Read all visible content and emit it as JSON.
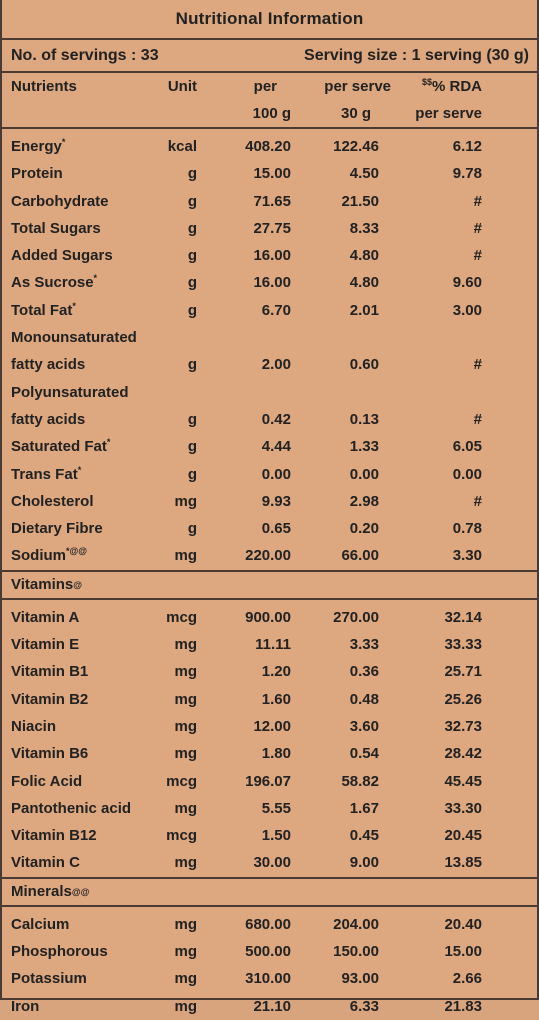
{
  "title": "Nutritional Information",
  "servings": {
    "count_label": "No. of servings : 33",
    "size_label": "Serving size : 1 serving (30 g)"
  },
  "columns": {
    "nutrients": "Nutrients",
    "unit": "Unit",
    "per100_line1": "per",
    "per100_line2": "100 g",
    "perserve_line1": "per serve",
    "perserve_line2": "30 g",
    "rda_sup": "$$",
    "rda_line1": "% RDA",
    "rda_line2": "per serve"
  },
  "nutrients": [
    {
      "name": "Energy",
      "sup": "*",
      "unit": "kcal",
      "per100": "408.20",
      "perserve": "122.46",
      "rda": "6.12"
    },
    {
      "name": "Protein",
      "sup": "",
      "unit": "g",
      "per100": "15.00",
      "perserve": "4.50",
      "rda": "9.78"
    },
    {
      "name": "Carbohydrate",
      "sup": "",
      "unit": "g",
      "per100": "71.65",
      "perserve": "21.50",
      "rda": "#"
    },
    {
      "name": "Total Sugars",
      "sup": "",
      "unit": "g",
      "per100": "27.75",
      "perserve": "8.33",
      "rda": "#"
    },
    {
      "name": "Added Sugars",
      "sup": "",
      "unit": "g",
      "per100": "16.00",
      "perserve": "4.80",
      "rda": "#"
    },
    {
      "name": "As Sucrose",
      "sup": "*",
      "unit": "g",
      "per100": "16.00",
      "perserve": "4.80",
      "rda": "9.60"
    },
    {
      "name": "Total Fat",
      "sup": "*",
      "unit": "g",
      "per100": "6.70",
      "perserve": "2.01",
      "rda": "3.00"
    },
    {
      "name": "Monounsaturated",
      "sup": "",
      "unit": "",
      "per100": "",
      "perserve": "",
      "rda": ""
    },
    {
      "name": "fatty acids",
      "sup": "",
      "unit": "g",
      "per100": "2.00",
      "perserve": "0.60",
      "rda": "#"
    },
    {
      "name": "Polyunsaturated",
      "sup": "",
      "unit": "",
      "per100": "",
      "perserve": "",
      "rda": ""
    },
    {
      "name": "fatty acids",
      "sup": "",
      "unit": "g",
      "per100": "0.42",
      "perserve": "0.13",
      "rda": "#"
    },
    {
      "name": "Saturated Fat",
      "sup": "*",
      "unit": "g",
      "per100": "4.44",
      "perserve": "1.33",
      "rda": "6.05"
    },
    {
      "name": "Trans Fat",
      "sup": "*",
      "unit": "g",
      "per100": "0.00",
      "perserve": "0.00",
      "rda": "0.00"
    },
    {
      "name": "Cholesterol",
      "sup": "",
      "unit": "mg",
      "per100": "9.93",
      "perserve": "2.98",
      "rda": "#"
    },
    {
      "name": "Dietary Fibre",
      "sup": "",
      "unit": "g",
      "per100": "0.65",
      "perserve": "0.20",
      "rda": "0.78"
    },
    {
      "name": "Sodium",
      "sup": "*@@",
      "unit": "mg",
      "per100": "220.00",
      "perserve": "66.00",
      "rda": "3.30"
    }
  ],
  "vitamins_header": {
    "label": "Vitamins",
    "sup": "@"
  },
  "vitamins": [
    {
      "name": "Vitamin A",
      "unit": "mcg",
      "per100": "900.00",
      "perserve": "270.00",
      "rda": "32.14"
    },
    {
      "name": "Vitamin E",
      "unit": "mg",
      "per100": "11.11",
      "perserve": "3.33",
      "rda": "33.33"
    },
    {
      "name": "Vitamin B1",
      "unit": "mg",
      "per100": "1.20",
      "perserve": "0.36",
      "rda": "25.71"
    },
    {
      "name": "Vitamin B2",
      "unit": "mg",
      "per100": "1.60",
      "perserve": "0.48",
      "rda": "25.26"
    },
    {
      "name": "Niacin",
      "unit": "mg",
      "per100": "12.00",
      "perserve": "3.60",
      "rda": "32.73"
    },
    {
      "name": "Vitamin B6",
      "unit": "mg",
      "per100": "1.80",
      "perserve": "0.54",
      "rda": "28.42"
    },
    {
      "name": "Folic Acid",
      "unit": "mcg",
      "per100": "196.07",
      "perserve": "58.82",
      "rda": "45.45"
    },
    {
      "name": "Pantothenic acid",
      "unit": "mg",
      "per100": "5.55",
      "perserve": "1.67",
      "rda": "33.30"
    },
    {
      "name": "Vitamin B12",
      "unit": "mcg",
      "per100": "1.50",
      "perserve": "0.45",
      "rda": "20.45"
    },
    {
      "name": "Vitamin C",
      "unit": "mg",
      "per100": "30.00",
      "perserve": "9.00",
      "rda": "13.85"
    }
  ],
  "minerals_header": {
    "label": "Minerals",
    "sup": "@@"
  },
  "minerals": [
    {
      "name": "Calcium",
      "unit": "mg",
      "per100": "680.00",
      "perserve": "204.00",
      "rda": "20.40"
    },
    {
      "name": "Phosphorous",
      "unit": "mg",
      "per100": "500.00",
      "perserve": "150.00",
      "rda": "15.00"
    },
    {
      "name": "Potassium",
      "unit": "mg",
      "per100": "310.00",
      "perserve": "93.00",
      "rda": "2.66"
    },
    {
      "name": "Iron",
      "unit": "mg",
      "per100": "21.10",
      "perserve": "6.33",
      "rda": "21.83"
    }
  ],
  "colors": {
    "background": "#dda77f",
    "border": "#4a3a34",
    "text": "#222222"
  }
}
